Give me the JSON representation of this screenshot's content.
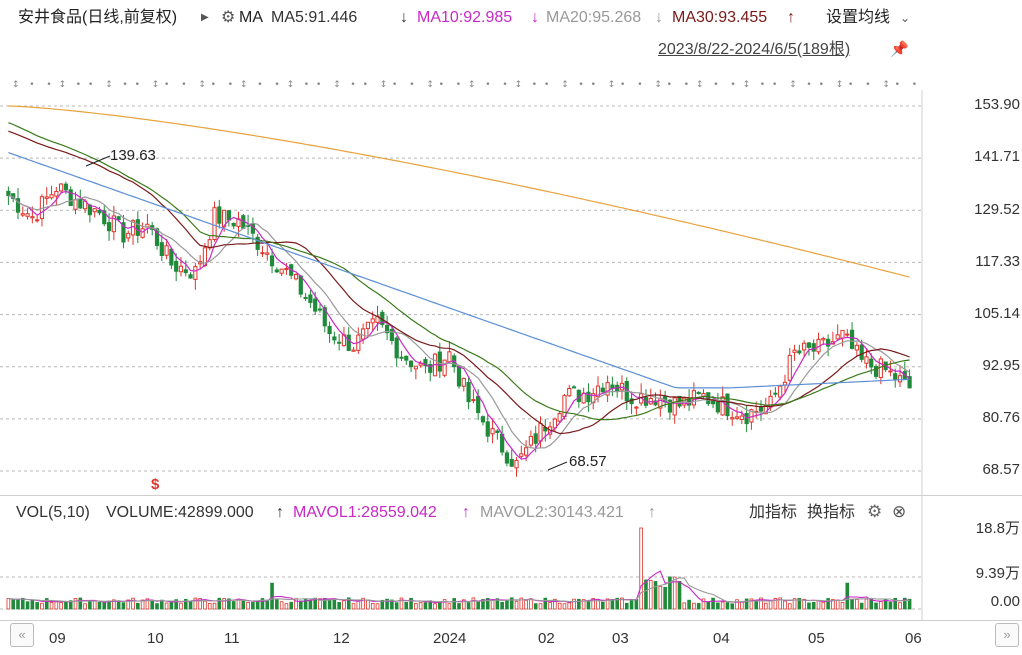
{
  "header": {
    "stock_title": "安井食品(日线,前复权)",
    "indicator": "MA",
    "ma5": "MA5:91.446",
    "ma5_arrow": "↓",
    "ma10": "MA10:92.985",
    "ma10_arrow": "↓",
    "ma20": "MA20:95.268",
    "ma20_arrow": "↓",
    "ma30": "MA30:93.455",
    "ma30_arrow": "↑",
    "settings_label": "设置均线",
    "date_range": "2023/8/22-2024/6/5(189根)"
  },
  "price_axis": [
    "153.90",
    "141.71",
    "129.52",
    "117.33",
    "105.14",
    "92.95",
    "80.76",
    "68.57"
  ],
  "annotations": {
    "high": "139.63",
    "low": "68.57",
    "marker": "$"
  },
  "volume_header": {
    "vol_label": "VOL(5,10)",
    "volume": "VOLUME:42899.000",
    "volume_arrow": "↑",
    "mavol1": "MAVOL1:28559.042",
    "mavol1_arrow": "↑",
    "mavol2": "MAVOL2:30143.421",
    "mavol2_arrow": "↑",
    "add_indicator": "加指标",
    "switch_indicator": "换指标"
  },
  "volume_axis": [
    "18.8万",
    "9.39万",
    "0.00"
  ],
  "time_axis": [
    "09",
    "10",
    "11",
    "12",
    "2024",
    "02",
    "03",
    "04",
    "05",
    "06"
  ],
  "colors": {
    "up": "#e0352c",
    "down": "#1e8a3a",
    "ma5": "#c729c7",
    "ma10": "#999999",
    "ma20": "#7a1a1a",
    "ma30": "#3a7a1a",
    "ma60": "#5b8fd6",
    "ma120": "#e8a23c"
  },
  "chart_data": {
    "type": "candlestick",
    "ylim": [
      68.57,
      153.9
    ],
    "close_path": [
      {
        "x": "2023-08-22",
        "y": 133
      },
      {
        "x": "2023-08-29",
        "y": 128
      },
      {
        "x": "2023-09-05",
        "y": 135
      },
      {
        "x": "2023-09-12",
        "y": 132
      },
      {
        "x": "2023-09-19",
        "y": 129
      },
      {
        "x": "2023-09-26",
        "y": 124
      },
      {
        "x": "2023-10-10",
        "y": 126
      },
      {
        "x": "2023-10-17",
        "y": 117
      },
      {
        "x": "2023-10-24",
        "y": 115
      },
      {
        "x": "2023-10-31",
        "y": 128
      },
      {
        "x": "2023-11-07",
        "y": 127
      },
      {
        "x": "2023-11-14",
        "y": 121
      },
      {
        "x": "2023-11-21",
        "y": 115
      },
      {
        "x": "2023-11-28",
        "y": 108
      },
      {
        "x": "2023-12-05",
        "y": 101
      },
      {
        "x": "2023-12-12",
        "y": 98
      },
      {
        "x": "2023-12-19",
        "y": 103
      },
      {
        "x": "2023-12-26",
        "y": 96
      },
      {
        "x": "2024-01-02",
        "y": 92
      },
      {
        "x": "2024-01-09",
        "y": 96
      },
      {
        "x": "2024-01-16",
        "y": 85
      },
      {
        "x": "2024-01-23",
        "y": 77
      },
      {
        "x": "2024-01-30",
        "y": 70
      },
      {
        "x": "2024-02-06",
        "y": 78
      },
      {
        "x": "2024-02-20",
        "y": 86
      },
      {
        "x": "2024-02-27",
        "y": 87
      },
      {
        "x": "2024-03-05",
        "y": 90
      },
      {
        "x": "2024-03-12",
        "y": 86
      },
      {
        "x": "2024-03-19",
        "y": 86
      },
      {
        "x": "2024-03-26",
        "y": 84
      },
      {
        "x": "2024-04-02",
        "y": 86
      },
      {
        "x": "2024-04-09",
        "y": 84
      },
      {
        "x": "2024-04-16",
        "y": 82
      },
      {
        "x": "2024-04-23",
        "y": 84
      },
      {
        "x": "2024-04-30",
        "y": 96
      },
      {
        "x": "2024-05-07",
        "y": 97
      },
      {
        "x": "2024-05-14",
        "y": 100
      },
      {
        "x": "2024-05-21",
        "y": 94
      },
      {
        "x": "2024-05-28",
        "y": 92
      },
      {
        "x": "2024-06-05",
        "y": 88
      }
    ],
    "series": [
      {
        "name": "MA5",
        "end_value": 91.446
      },
      {
        "name": "MA10",
        "end_value": 92.985
      },
      {
        "name": "MA20",
        "end_value": 95.268
      },
      {
        "name": "MA30",
        "end_value": 93.455
      }
    ],
    "annotations": [
      {
        "label": "139.63",
        "kind": "high"
      },
      {
        "label": "68.57",
        "kind": "low"
      }
    ],
    "volume": {
      "ylim": [
        0,
        188000
      ],
      "last": {
        "VOLUME": 42899.0,
        "MAVOL1": 28559.042,
        "MAVOL2": 30143.421
      }
    }
  }
}
